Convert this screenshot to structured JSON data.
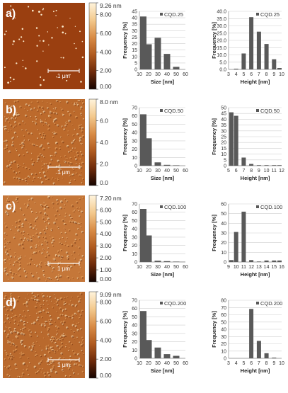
{
  "panels": [
    {
      "id": "a",
      "label": "a)",
      "scale_bar": "1 μm",
      "afm": {
        "colors": [
          "#160400",
          "#6e2a0a",
          "#b05a1f",
          "#d98c46",
          "#f3c98d",
          "#fff4dc"
        ],
        "colorbar_ticks": [
          "9.26 nm",
          "8.00",
          "6.00",
          "4.00",
          "2.00",
          "0.00"
        ],
        "tick_values": [
          9.26,
          8,
          6,
          4,
          2,
          0
        ],
        "max": 9.26
      }
    },
    {
      "id": "b",
      "label": "b)",
      "scale_bar": "1 μm",
      "afm": {
        "colors": [
          "#160400",
          "#6e2a0a",
          "#b05a1f",
          "#d98c46",
          "#f3c98d",
          "#fff4dc"
        ],
        "colorbar_ticks": [
          "8.0 nm",
          "6.0",
          "4.0",
          "2.0",
          "0.0"
        ],
        "tick_values": [
          8,
          6,
          4,
          2,
          0
        ],
        "max": 8
      }
    },
    {
      "id": "c",
      "label": "c)",
      "scale_bar": "1 μm",
      "afm": {
        "colors": [
          "#160400",
          "#6e2a0a",
          "#b05a1f",
          "#d98c46",
          "#f3c98d",
          "#fff4dc"
        ],
        "colorbar_ticks": [
          "7.20 nm",
          "6.00",
          "5.00",
          "4.00",
          "3.00",
          "2.00",
          "1.00",
          "0.00"
        ],
        "tick_values": [
          7.2,
          6,
          5,
          4,
          3,
          2,
          1,
          0
        ],
        "max": 7.2
      }
    },
    {
      "id": "d",
      "label": "d)",
      "scale_bar": "1 μm",
      "afm": {
        "colors": [
          "#160400",
          "#6e2a0a",
          "#b05a1f",
          "#d98c46",
          "#f3c98d",
          "#fff4dc"
        ],
        "colorbar_ticks": [
          "9.09 nm",
          "8.00",
          "6.00",
          "4.00",
          "2.00",
          "0.00"
        ],
        "tick_values": [
          9.09,
          8,
          6,
          4,
          2,
          0
        ],
        "max": 9.09
      }
    }
  ],
  "chart_data": [
    {
      "panel": "a",
      "type": "bar",
      "title": "",
      "legend": "CQD.25",
      "xlabel": "Size [nm]",
      "ylabel": "Frequency [%]",
      "categories": [
        "10",
        "20",
        "30",
        "40",
        "50",
        "60"
      ],
      "values": [
        41,
        19.5,
        24.5,
        12,
        2,
        0
      ],
      "ylim": [
        0,
        45
      ],
      "yticks": [
        "0",
        "5",
        "10",
        "15",
        "20",
        "25",
        "30",
        "35",
        "40",
        "45"
      ],
      "grid": true
    },
    {
      "panel": "a",
      "type": "bar",
      "title": "",
      "legend": "CQD.25",
      "xlabel": "Height [nm]",
      "ylabel": "Frequency [%]",
      "categories": [
        "3",
        "4",
        "5",
        "6",
        "7",
        "8",
        "9",
        "10"
      ],
      "values": [
        0,
        0.5,
        11,
        36,
        26,
        17.5,
        7,
        1
      ],
      "ylim": [
        0,
        40
      ],
      "yticks": [
        "0.0",
        "5.0",
        "10.0",
        "15.0",
        "20.0",
        "25.0",
        "30.0",
        "35.0",
        "40.0"
      ],
      "grid": true
    },
    {
      "panel": "b",
      "type": "bar",
      "title": "",
      "legend": "CQD.50",
      "xlabel": "Size [nm]",
      "ylabel": "Frequency [%]",
      "categories": [
        "10",
        "20",
        "30",
        "40",
        "50",
        "60"
      ],
      "values": [
        62,
        33,
        4,
        1,
        0.5,
        0
      ],
      "ylim": [
        0,
        70
      ],
      "yticks": [
        "0",
        "10",
        "20",
        "30",
        "40",
        "50",
        "60",
        "70"
      ],
      "grid": true
    },
    {
      "panel": "b",
      "type": "bar",
      "title": "",
      "legend": "CQD.50",
      "xlabel": "Height [nm]",
      "ylabel": "Frequency [%]",
      "categories": [
        "5",
        "6",
        "7",
        "8",
        "9",
        "10",
        "11",
        "12"
      ],
      "values": [
        46,
        43,
        7,
        1.5,
        0.5,
        0.5,
        0.5,
        0.5
      ],
      "ylim": [
        0,
        50
      ],
      "yticks": [
        "0",
        "5",
        "10",
        "15",
        "20",
        "25",
        "30",
        "35",
        "40",
        "45",
        "50"
      ],
      "grid": true
    },
    {
      "panel": "c",
      "type": "bar",
      "title": "",
      "legend": "CQD.100",
      "xlabel": "Size [nm]",
      "ylabel": "Frequency [%]",
      "categories": [
        "10",
        "20",
        "30",
        "40",
        "50",
        "60"
      ],
      "values": [
        64,
        32,
        1.5,
        1,
        0.5,
        0.2
      ],
      "ylim": [
        0,
        70
      ],
      "yticks": [
        "0",
        "10",
        "20",
        "30",
        "40",
        "50",
        "60",
        "70"
      ],
      "grid": true
    },
    {
      "panel": "c",
      "type": "bar",
      "title": "",
      "legend": "CQD.100",
      "xlabel": "Height [nm]",
      "ylabel": "Frequency [%]",
      "categories": [
        "9",
        "10",
        "11",
        "12",
        "13",
        "14",
        "15",
        "16"
      ],
      "values": [
        2,
        31,
        52,
        2,
        0.5,
        1.5,
        1.5,
        1.5
      ],
      "ylim": [
        0,
        60
      ],
      "yticks": [
        "0",
        "10",
        "20",
        "30",
        "40",
        "50",
        "60"
      ],
      "grid": true
    },
    {
      "panel": "d",
      "type": "bar",
      "title": "",
      "legend": "CQD.200",
      "xlabel": "Size [nm]",
      "ylabel": "Frequency [%]",
      "categories": [
        "10",
        "20",
        "30",
        "40",
        "50",
        "60"
      ],
      "values": [
        57,
        22,
        13,
        5,
        3,
        0
      ],
      "ylim": [
        0,
        70
      ],
      "yticks": [
        "0",
        "10",
        "20",
        "30",
        "40",
        "50",
        "60",
        "70"
      ],
      "grid": true
    },
    {
      "panel": "d",
      "type": "bar",
      "title": "",
      "legend": "CQD.200",
      "xlabel": "Height [nm]",
      "ylabel": "Frequency [%]",
      "categories": [
        "3",
        "4",
        "5",
        "6",
        "7",
        "8",
        "9",
        "10"
      ],
      "values": [
        0,
        0,
        0,
        68,
        24,
        7,
        1,
        0
      ],
      "ylim": [
        0,
        80
      ],
      "yticks": [
        "0",
        "10",
        "20",
        "30",
        "40",
        "50",
        "60",
        "70",
        "80"
      ],
      "grid": true
    }
  ]
}
